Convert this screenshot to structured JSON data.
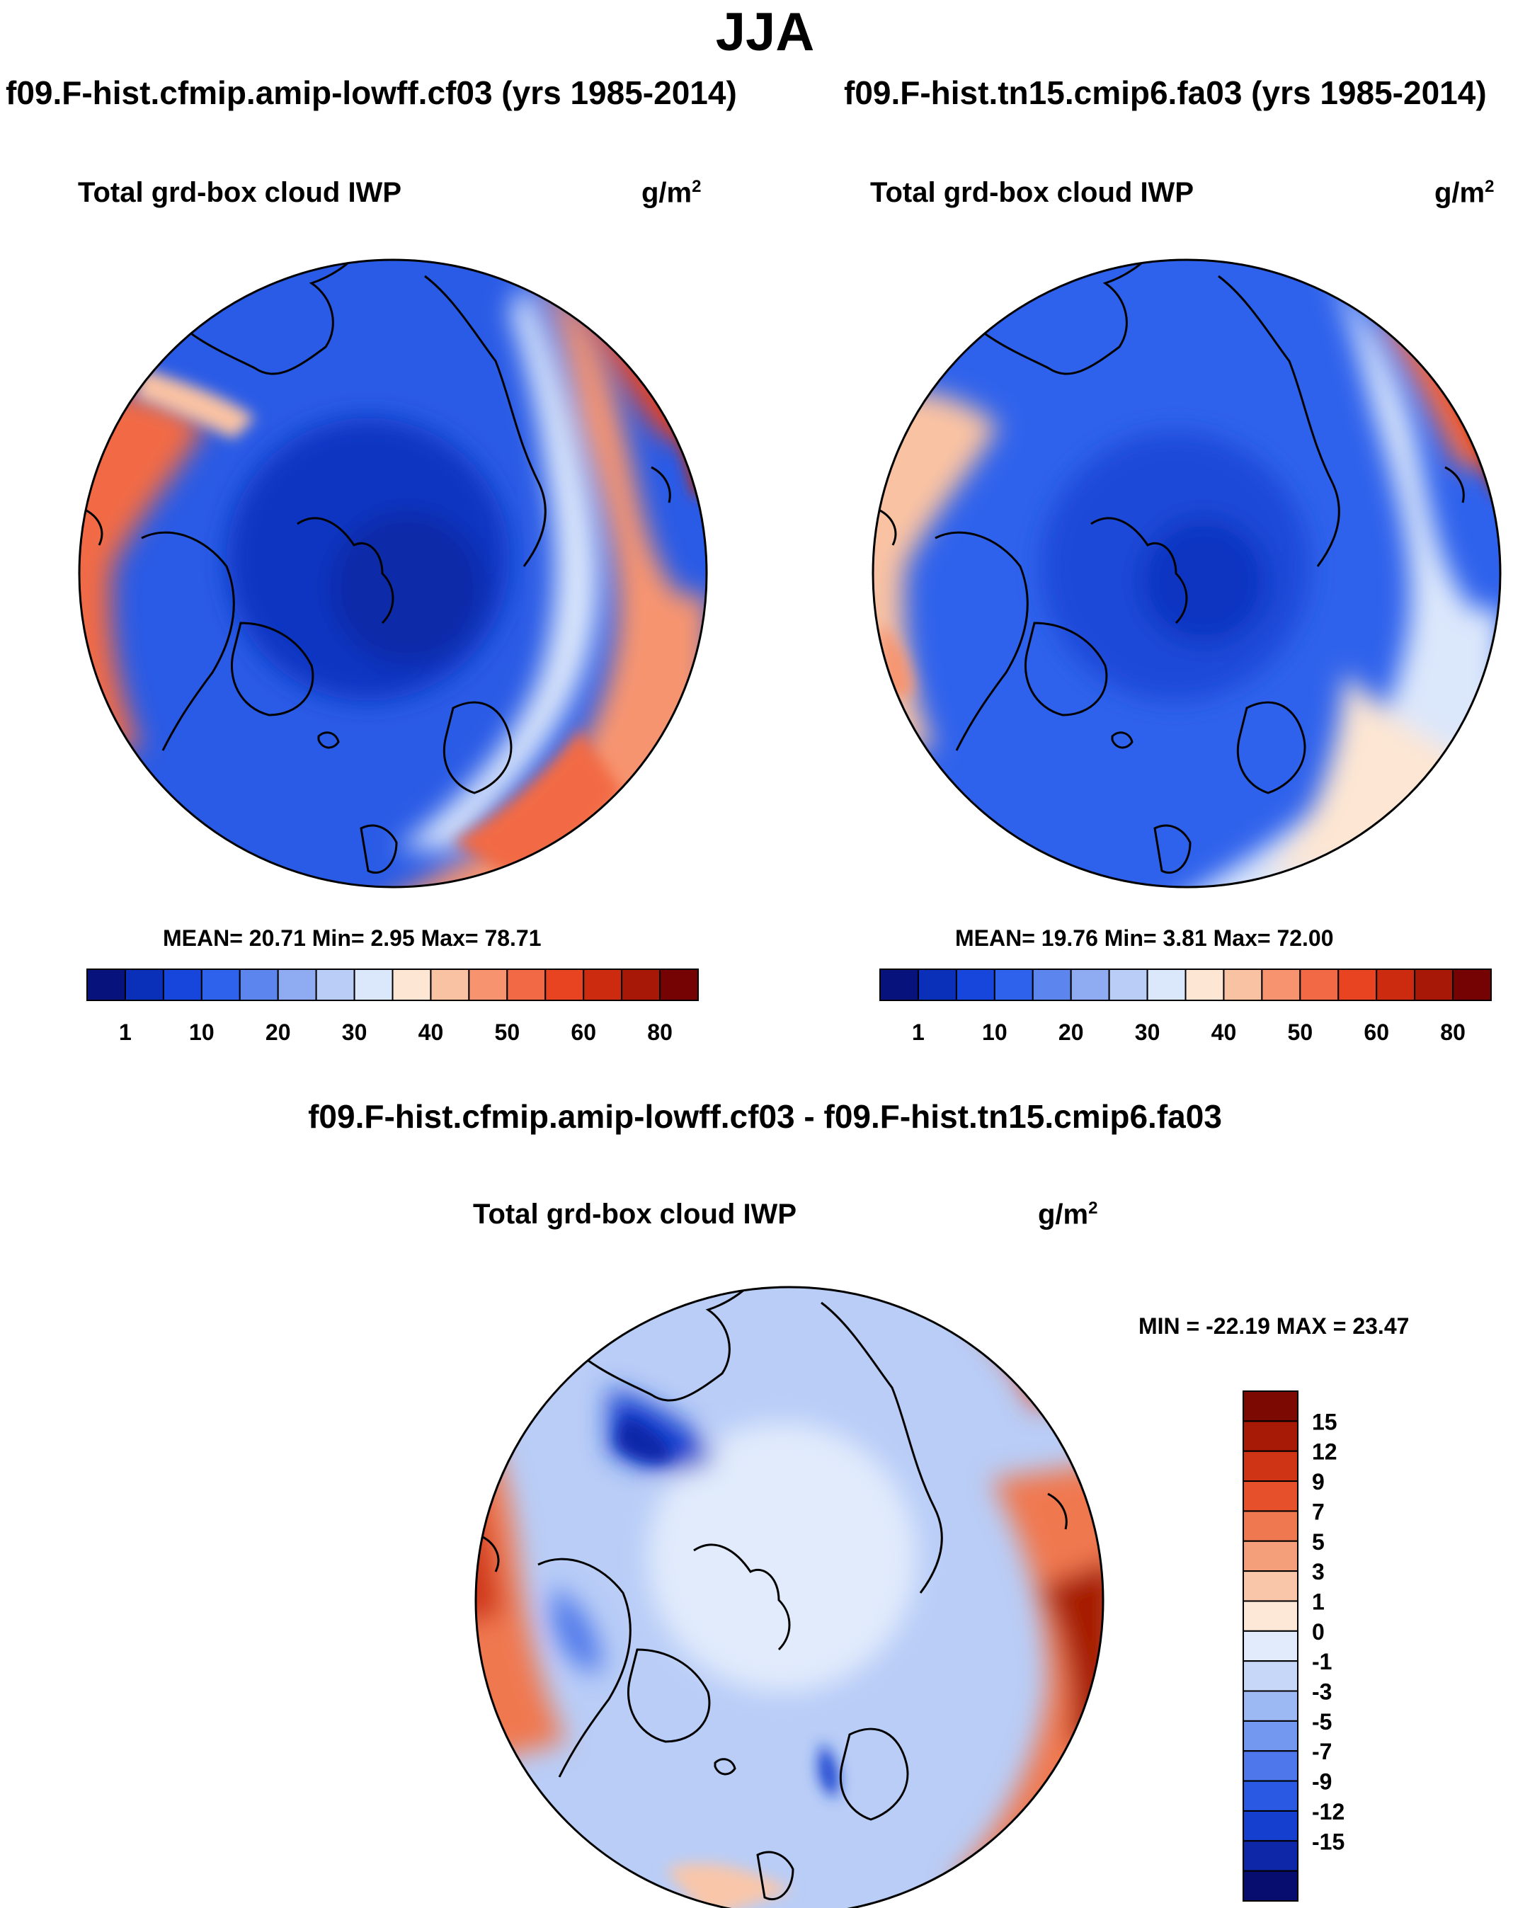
{
  "header": {
    "season": "JJA",
    "left_case": "f09.F-hist.cfmip.amip-lowff.cf03 (yrs 1985-2014)",
    "right_case": "f09.F-hist.tn15.cmip6.fa03 (yrs 1985-2014)",
    "diff_title": "f09.F-hist.cfmip.amip-lowff.cf03 - f09.F-hist.tn15.cmip6.fa03"
  },
  "panels": {
    "left": {
      "var_title": "Total grd-box cloud IWP",
      "units": "g/m",
      "units_sup": "2",
      "stats": "MEAN=  20.71   Min=    2.95   Max=   78.71"
    },
    "right": {
      "var_title": "Total grd-box cloud IWP",
      "units": "g/m",
      "units_sup": "2",
      "stats": "MEAN=  19.76   Min=    3.81   Max=   72.00"
    },
    "diff": {
      "var_title": "Total grd-box cloud IWP",
      "units": "g/m",
      "units_sup": "2",
      "stats": "MIN = -22.19 MAX =  23.47"
    }
  },
  "colors": {
    "abs_scale": [
      "#08127d",
      "#0a2fb8",
      "#1746dc",
      "#2f62ec",
      "#5c86ee",
      "#8facf2",
      "#b9cdf7",
      "#dbe7fb",
      "#fde6d3",
      "#f9c2a3",
      "#f7946f",
      "#f26a45",
      "#e84422",
      "#cc2b10",
      "#a81806",
      "#760303"
    ],
    "diff_scale": [
      "#070d6e",
      "#0d27a8",
      "#1540cf",
      "#2a5ae4",
      "#4d77ea",
      "#7398ef",
      "#9db9f4",
      "#c6d7f8",
      "#e1ebfc",
      "#fde8d8",
      "#f9c6a9",
      "#f59f7a",
      "#f07850",
      "#e6502b",
      "#cf3415",
      "#a61a06",
      "#7c0a02"
    ],
    "coast": "#000000",
    "frame": "#000000"
  },
  "chart_data": [
    {
      "type": "heatmap",
      "projection": "north polar stereographic",
      "panel": "left",
      "title": "Total grd-box cloud IWP",
      "units": "g/m2",
      "mean": 20.71,
      "min": 2.95,
      "max": 78.71,
      "legend_levels": [
        1,
        5,
        10,
        15,
        20,
        25,
        30,
        35,
        40,
        45,
        50,
        55,
        60,
        70,
        80
      ],
      "legend_labels": [
        "1",
        "10",
        "20",
        "30",
        "40",
        "50",
        "60",
        "80"
      ]
    },
    {
      "type": "heatmap",
      "projection": "north polar stereographic",
      "panel": "right",
      "title": "Total grd-box cloud IWP",
      "units": "g/m2",
      "mean": 19.76,
      "min": 3.81,
      "max": 72.0,
      "legend_levels": [
        1,
        5,
        10,
        15,
        20,
        25,
        30,
        35,
        40,
        45,
        50,
        55,
        60,
        70,
        80
      ],
      "legend_labels": [
        "1",
        "10",
        "20",
        "30",
        "40",
        "50",
        "60",
        "80"
      ]
    },
    {
      "type": "heatmap",
      "projection": "north polar stereographic",
      "panel": "difference",
      "title": "Total grd-box cloud IWP",
      "units": "g/m2",
      "min": -22.19,
      "max": 23.47,
      "legend_labels": [
        "15",
        "12",
        "9",
        "7",
        "5",
        "3",
        "1",
        "0",
        "-1",
        "-3",
        "-5",
        "-7",
        "-9",
        "-12",
        "-15"
      ]
    }
  ]
}
